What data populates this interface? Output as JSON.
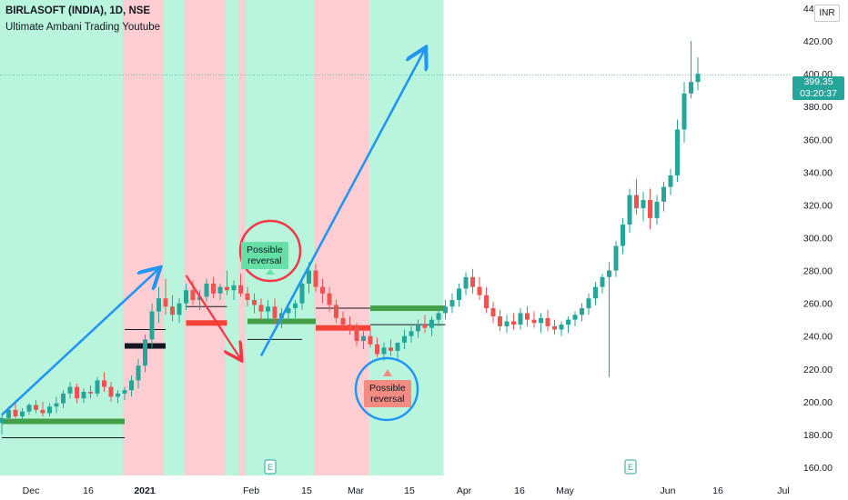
{
  "header": {
    "title": "BIRLASOFT (INDIA), 1D, NSE",
    "subtitle": "Ultimate Ambani Trading Youtube",
    "currency": "INR"
  },
  "last_price": {
    "price": "399.35",
    "countdown": "03:20:37",
    "value": 399.35
  },
  "annotations": [
    {
      "label": "Possible\nreversal",
      "kind": "green"
    },
    {
      "label": "Possible\nreversal",
      "kind": "red"
    }
  ],
  "earnings_marker": "E",
  "colors": {
    "up": "#26a69a",
    "down": "#ef5350",
    "bull_zone": "#b9f5dc",
    "bear_zone": "#ffcdd2",
    "arrow": "#2196f3",
    "circle_red": "#f23645",
    "circle_blue": "#2196f3",
    "support_green": "#43a047",
    "resistance_red": "#f44336"
  },
  "chart_data": {
    "type": "candlestick",
    "y_axis": {
      "min": 155,
      "max": 445,
      "ticks": [
        160,
        180,
        200,
        220,
        240,
        260,
        280,
        300,
        320,
        340,
        360,
        380,
        400,
        420,
        440
      ]
    },
    "y_tick_labels": [
      "160.00",
      "180.00",
      "200.00",
      "220.00",
      "240.00",
      "260.00",
      "280.00",
      "300.00",
      "320.00",
      "340.00",
      "360.00",
      "380.00",
      "400.00",
      "420.00",
      "440.00"
    ],
    "x_tick_labels": [
      "Dec",
      "16",
      "2021",
      "Feb",
      "15",
      "Mar",
      "15",
      "Apr",
      "16",
      "May",
      "Jun",
      "16",
      "Jul"
    ],
    "candles_ohlc": [
      [
        187,
        192,
        180,
        190
      ],
      [
        190,
        197,
        187,
        195
      ],
      [
        195,
        199,
        190,
        191
      ],
      [
        191,
        196,
        188,
        194
      ],
      [
        194,
        199,
        192,
        198
      ],
      [
        198,
        201,
        193,
        195
      ],
      [
        195,
        200,
        191,
        193
      ],
      [
        193,
        199,
        191,
        197
      ],
      [
        197,
        203,
        193,
        199
      ],
      [
        199,
        207,
        196,
        205
      ],
      [
        205,
        212,
        202,
        209
      ],
      [
        209,
        211,
        199,
        202
      ],
      [
        202,
        208,
        199,
        206
      ],
      [
        206,
        210,
        202,
        205
      ],
      [
        205,
        215,
        203,
        213
      ],
      [
        213,
        218,
        206,
        209
      ],
      [
        209,
        212,
        200,
        203
      ],
      [
        203,
        207,
        199,
        205
      ],
      [
        205,
        209,
        201,
        207
      ],
      [
        207,
        216,
        203,
        213
      ],
      [
        213,
        226,
        208,
        222
      ],
      [
        222,
        241,
        218,
        238
      ],
      [
        238,
        260,
        233,
        255
      ],
      [
        255,
        270,
        248,
        263
      ],
      [
        263,
        275,
        253,
        258
      ],
      [
        258,
        265,
        249,
        253
      ],
      [
        253,
        263,
        248,
        260
      ],
      [
        260,
        272,
        256,
        268
      ],
      [
        268,
        274,
        259,
        262
      ],
      [
        262,
        268,
        256,
        264
      ],
      [
        264,
        275,
        261,
        272
      ],
      [
        272,
        276,
        263,
        266
      ],
      [
        266,
        272,
        262,
        270
      ],
      [
        270,
        280,
        265,
        268
      ],
      [
        268,
        274,
        262,
        271
      ],
      [
        271,
        278,
        264,
        266
      ],
      [
        266,
        270,
        258,
        262
      ],
      [
        262,
        266,
        254,
        259
      ],
      [
        259,
        263,
        250,
        255
      ],
      [
        255,
        262,
        249,
        258
      ],
      [
        258,
        263,
        247,
        251
      ],
      [
        251,
        257,
        245,
        254
      ],
      [
        254,
        260,
        249,
        257
      ],
      [
        257,
        262,
        251,
        260
      ],
      [
        260,
        275,
        256,
        272
      ],
      [
        272,
        285,
        266,
        280
      ],
      [
        280,
        284,
        267,
        270
      ],
      [
        270,
        275,
        260,
        266
      ],
      [
        266,
        270,
        255,
        259
      ],
      [
        259,
        262,
        248,
        251
      ],
      [
        251,
        255,
        243,
        247
      ],
      [
        247,
        252,
        241,
        245
      ],
      [
        245,
        248,
        234,
        237
      ],
      [
        237,
        243,
        232,
        240
      ],
      [
        240,
        245,
        233,
        235
      ],
      [
        235,
        239,
        227,
        229
      ],
      [
        229,
        236,
        225,
        233
      ],
      [
        233,
        238,
        228,
        231
      ],
      [
        231,
        236,
        226,
        236
      ],
      [
        236,
        244,
        232,
        240
      ],
      [
        240,
        246,
        236,
        243
      ],
      [
        243,
        250,
        239,
        247
      ],
      [
        247,
        253,
        242,
        245
      ],
      [
        245,
        252,
        240,
        250
      ],
      [
        250,
        258,
        246,
        254
      ],
      [
        254,
        262,
        250,
        258
      ],
      [
        258,
        266,
        254,
        262
      ],
      [
        262,
        272,
        258,
        269
      ],
      [
        269,
        279,
        265,
        276
      ],
      [
        276,
        281,
        266,
        270
      ],
      [
        270,
        276,
        262,
        265
      ],
      [
        265,
        270,
        254,
        257
      ],
      [
        257,
        261,
        248,
        252
      ],
      [
        252,
        256,
        243,
        246
      ],
      [
        246,
        253,
        242,
        249
      ],
      [
        249,
        254,
        244,
        247
      ],
      [
        247,
        257,
        244,
        254
      ],
      [
        254,
        258,
        246,
        250
      ],
      [
        250,
        255,
        245,
        248
      ],
      [
        248,
        254,
        242,
        251
      ],
      [
        251,
        256,
        243,
        246
      ],
      [
        246,
        250,
        241,
        244
      ],
      [
        244,
        249,
        240,
        247
      ],
      [
        247,
        252,
        242,
        250
      ],
      [
        250,
        255,
        246,
        253
      ],
      [
        253,
        260,
        249,
        257
      ],
      [
        257,
        266,
        253,
        263
      ],
      [
        263,
        273,
        259,
        270
      ],
      [
        270,
        278,
        266,
        276
      ],
      [
        276,
        285,
        215,
        280
      ],
      [
        280,
        298,
        276,
        295
      ],
      [
        295,
        312,
        290,
        308
      ],
      [
        308,
        330,
        303,
        326
      ],
      [
        326,
        336,
        314,
        318
      ],
      [
        318,
        328,
        310,
        323
      ],
      [
        323,
        330,
        305,
        312
      ],
      [
        312,
        326,
        308,
        322
      ],
      [
        322,
        334,
        316,
        331
      ],
      [
        331,
        342,
        326,
        338
      ],
      [
        338,
        372,
        334,
        366
      ],
      [
        366,
        395,
        358,
        388
      ],
      [
        388,
        420,
        385,
        395
      ],
      [
        395,
        410,
        390,
        400
      ]
    ],
    "zones": [
      {
        "type": "bull",
        "from": 0,
        "to": 18
      },
      {
        "type": "bear",
        "from": 18,
        "to": 24
      },
      {
        "type": "bull",
        "from": 24,
        "to": 27
      },
      {
        "type": "bear",
        "from": 27,
        "to": 33
      },
      {
        "type": "bull",
        "from": 33,
        "to": 35
      },
      {
        "type": "bear",
        "from": 35,
        "to": 36
      },
      {
        "type": "bull",
        "from": 36,
        "to": 46
      },
      {
        "type": "bear",
        "from": 46,
        "to": 54
      },
      {
        "type": "bull",
        "from": 54,
        "to": 65
      }
    ],
    "levels": [
      {
        "kind": "support",
        "price": 188,
        "from": 0,
        "to": 18
      },
      {
        "kind": "resistance",
        "price": 178,
        "from": 0,
        "to": 18
      },
      {
        "kind": "support",
        "price": 234,
        "from": 18,
        "to": 24
      },
      {
        "kind": "resistance",
        "price": 244,
        "from": 18,
        "to": 24
      },
      {
        "kind": "support",
        "price": 248,
        "from": 27,
        "to": 33
      },
      {
        "kind": "resistance",
        "price": 258,
        "from": 27,
        "to": 33
      },
      {
        "kind": "support",
        "price": 249,
        "from": 36,
        "to": 46
      },
      {
        "kind": "resistance",
        "price": 238,
        "from": 36,
        "to": 44
      },
      {
        "kind": "support",
        "price": 245,
        "from": 46,
        "to": 54
      },
      {
        "kind": "resistance",
        "price": 257,
        "from": 46,
        "to": 54
      },
      {
        "kind": "support",
        "price": 257,
        "from": 54,
        "to": 65
      },
      {
        "kind": "resistance",
        "price": 247,
        "from": 54,
        "to": 65
      }
    ],
    "trend_arrows": [
      {
        "from": [
          0,
          192
        ],
        "to": [
          23,
          281
        ]
      },
      {
        "from": [
          27,
          277
        ],
        "to": [
          35,
          226
        ]
      },
      {
        "from": [
          38,
          228
        ],
        "to": [
          62,
          415
        ]
      }
    ]
  }
}
